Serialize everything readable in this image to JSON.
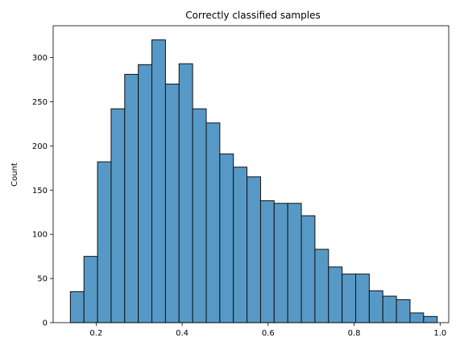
{
  "chart_data": {
    "type": "bar",
    "title": "Correctly classified samples",
    "xlabel": "",
    "ylabel": "Count",
    "xlim": [
      0.1,
      1.02
    ],
    "ylim": [
      0,
      336
    ],
    "xticks": [
      "0.2",
      "0.4",
      "0.6",
      "0.8",
      "1.0"
    ],
    "xtick_values": [
      0.2,
      0.4,
      0.6,
      0.8,
      1.0
    ],
    "yticks": [
      "0",
      "50",
      "100",
      "150",
      "200",
      "250",
      "300"
    ],
    "ytick_values": [
      0,
      50,
      100,
      150,
      200,
      250,
      300
    ],
    "bin_start": 0.14,
    "bin_width": 0.0316,
    "values": [
      35,
      75,
      182,
      242,
      281,
      292,
      320,
      270,
      293,
      242,
      226,
      191,
      176,
      165,
      138,
      135,
      135,
      121,
      83,
      63,
      55,
      55,
      36,
      30,
      26,
      11,
      7
    ],
    "grid": false,
    "colors": {
      "bar_fill": "#5799c6",
      "bar_edge": "#111111",
      "axis": "#000000"
    }
  }
}
